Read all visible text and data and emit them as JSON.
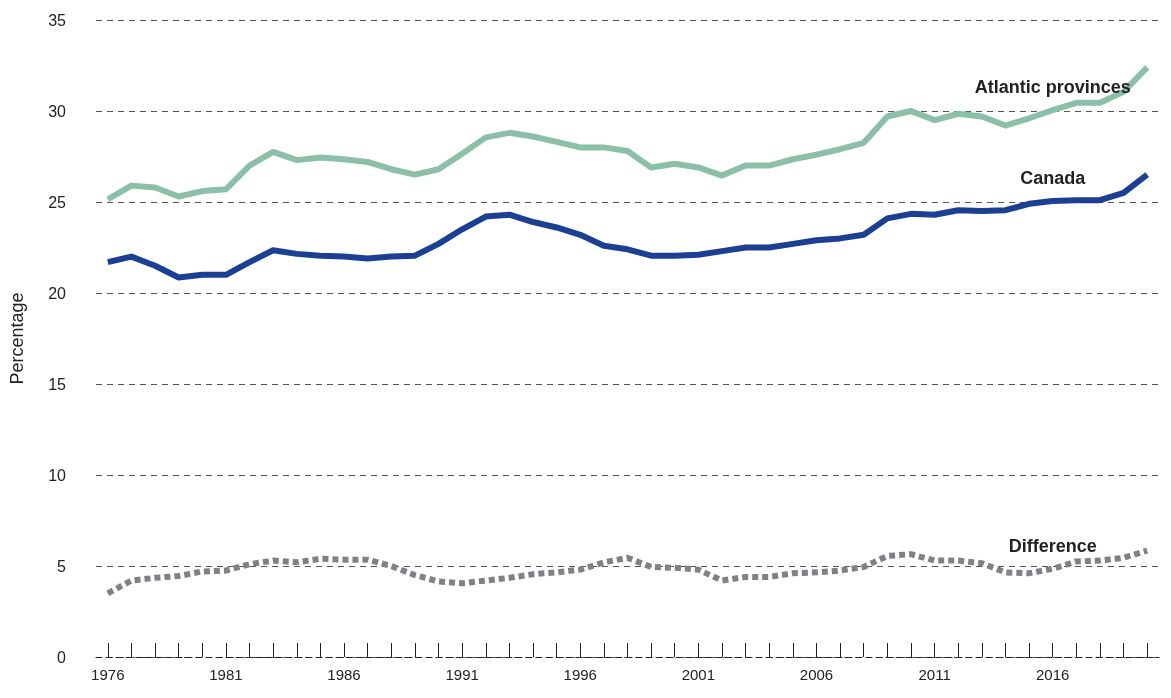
{
  "chart_data": {
    "type": "line",
    "ylabel": "Percentage",
    "x": [
      1976,
      1977,
      1978,
      1979,
      1980,
      1981,
      1982,
      1983,
      1984,
      1985,
      1986,
      1987,
      1988,
      1989,
      1990,
      1991,
      1992,
      1993,
      1994,
      1995,
      1996,
      1997,
      1998,
      1999,
      2000,
      2001,
      2002,
      2003,
      2004,
      2005,
      2006,
      2007,
      2008,
      2009,
      2010,
      2011,
      2012,
      2013,
      2014,
      2015,
      2016,
      2017,
      2018,
      2019,
      2020
    ],
    "series": [
      {
        "name": "Atlantic provinces",
        "color": "#8bbfaa",
        "line_style": "solid",
        "values": [
          25.15,
          25.9,
          25.8,
          25.3,
          25.6,
          25.7,
          27.0,
          27.75,
          27.3,
          27.45,
          27.35,
          27.2,
          26.8,
          26.5,
          26.8,
          27.65,
          28.55,
          28.8,
          28.6,
          28.3,
          28.0,
          28.0,
          27.8,
          26.9,
          27.1,
          26.9,
          26.45,
          27.0,
          27.0,
          27.35,
          27.6,
          27.9,
          28.25,
          29.7,
          30.0,
          29.5,
          29.85,
          29.7,
          29.2,
          29.6,
          30.05,
          30.45,
          30.45,
          31.05,
          32.4
        ]
      },
      {
        "name": "Canada",
        "color": "#1a3f93",
        "line_style": "solid",
        "values": [
          21.7,
          22.0,
          21.5,
          20.85,
          21.0,
          21.0,
          21.7,
          22.35,
          22.15,
          22.05,
          22.0,
          21.9,
          22.0,
          22.05,
          22.7,
          23.5,
          24.2,
          24.3,
          23.9,
          23.6,
          23.2,
          22.6,
          22.4,
          22.05,
          22.05,
          22.1,
          22.3,
          22.5,
          22.5,
          22.7,
          22.9,
          23.0,
          23.2,
          24.1,
          24.35,
          24.3,
          24.55,
          24.5,
          24.55,
          24.9,
          25.05,
          25.1,
          25.1,
          25.5,
          26.5
        ]
      },
      {
        "name": "Difference",
        "color": "#7f8184",
        "line_style": "dashed",
        "values": [
          3.5,
          4.2,
          4.35,
          4.45,
          4.7,
          4.75,
          5.1,
          5.3,
          5.2,
          5.4,
          5.35,
          5.35,
          5.0,
          4.5,
          4.15,
          4.05,
          4.2,
          4.35,
          4.55,
          4.65,
          4.8,
          5.2,
          5.45,
          4.95,
          4.9,
          4.8,
          4.2,
          4.4,
          4.4,
          4.6,
          4.65,
          4.75,
          4.95,
          5.55,
          5.65,
          5.3,
          5.3,
          5.15,
          4.65,
          4.6,
          4.85,
          5.25,
          5.3,
          5.45,
          5.85
        ]
      }
    ],
    "xlim": [
      1975.5,
      2020.5
    ],
    "xticks": [
      {
        "value": 1976,
        "label": "1976"
      },
      {
        "value": 1977,
        "label": null
      },
      {
        "value": 1978,
        "label": null
      },
      {
        "value": 1979,
        "label": null
      },
      {
        "value": 1980,
        "label": null
      },
      {
        "value": 1981,
        "label": "1981"
      },
      {
        "value": 1982,
        "label": null
      },
      {
        "value": 1983,
        "label": null
      },
      {
        "value": 1984,
        "label": null
      },
      {
        "value": 1985,
        "label": null
      },
      {
        "value": 1986,
        "label": "1986"
      },
      {
        "value": 1987,
        "label": null
      },
      {
        "value": 1988,
        "label": null
      },
      {
        "value": 1989,
        "label": null
      },
      {
        "value": 1990,
        "label": null
      },
      {
        "value": 1991,
        "label": "1991"
      },
      {
        "value": 1992,
        "label": null
      },
      {
        "value": 1993,
        "label": null
      },
      {
        "value": 1994,
        "label": null
      },
      {
        "value": 1995,
        "label": null
      },
      {
        "value": 1996,
        "label": "1996"
      },
      {
        "value": 1997,
        "label": null
      },
      {
        "value": 1998,
        "label": null
      },
      {
        "value": 1999,
        "label": null
      },
      {
        "value": 2000,
        "label": null
      },
      {
        "value": 2001,
        "label": "2001"
      },
      {
        "value": 2002,
        "label": null
      },
      {
        "value": 2003,
        "label": null
      },
      {
        "value": 2004,
        "label": null
      },
      {
        "value": 2005,
        "label": null
      },
      {
        "value": 2006,
        "label": "2006"
      },
      {
        "value": 2007,
        "label": null
      },
      {
        "value": 2008,
        "label": null
      },
      {
        "value": 2009,
        "label": null
      },
      {
        "value": 2010,
        "label": null
      },
      {
        "value": 2011,
        "label": "2011"
      },
      {
        "value": 2012,
        "label": null
      },
      {
        "value": 2013,
        "label": null
      },
      {
        "value": 2014,
        "label": null
      },
      {
        "value": 2015,
        "label": null
      },
      {
        "value": 2016,
        "label": "2016"
      },
      {
        "value": 2017,
        "label": null
      },
      {
        "value": 2018,
        "label": null
      },
      {
        "value": 2019,
        "label": null
      },
      {
        "value": 2020,
        "label": null
      }
    ],
    "ylim": [
      0,
      35
    ],
    "yticks": [
      0,
      5,
      10,
      15,
      20,
      25,
      30,
      35
    ],
    "grid": "y",
    "legend": false,
    "marker": "none"
  }
}
